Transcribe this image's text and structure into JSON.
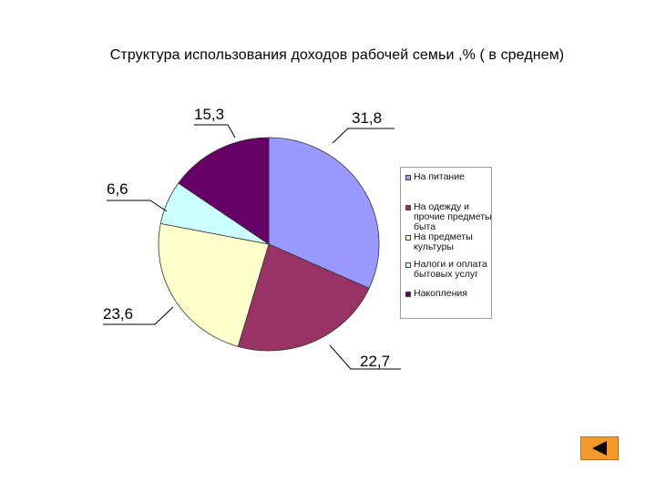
{
  "chart_data": {
    "type": "pie",
    "title": "Структура использования доходов рабочей семьи ,% ( в среднем)",
    "labels": [
      "На питание",
      "На одежду и прочие предметы быта",
      "На предметы культуры",
      "Налоги и оплата бытовых услуг",
      "Накопления"
    ],
    "values": [
      31.8,
      22.7,
      23.6,
      6.6,
      15.3
    ],
    "value_labels": [
      "31,8",
      "22,7",
      "23,6",
      "6,6",
      "15,3"
    ],
    "colors": [
      "#9999ff",
      "#993366",
      "#ffffcc",
      "#ccffff",
      "#660066"
    ],
    "legend": "right"
  },
  "navigation": {
    "back_icon": "triangle-left-icon"
  }
}
